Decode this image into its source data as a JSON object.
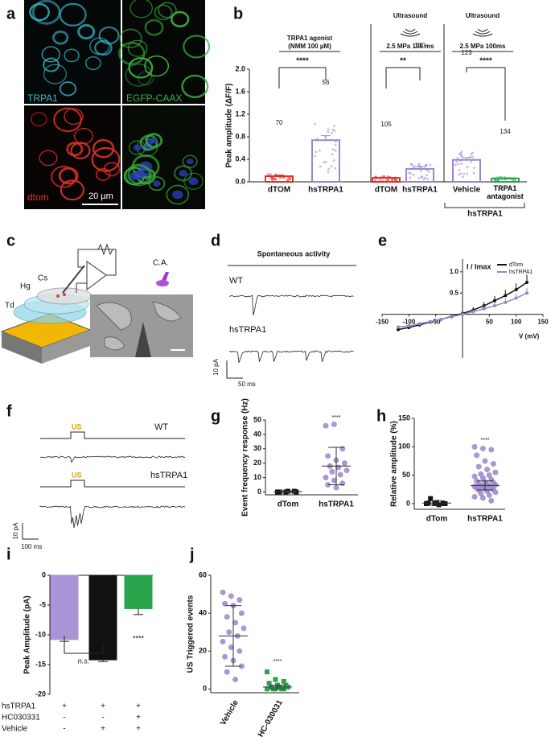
{
  "panel_letters": [
    "a",
    "b",
    "c",
    "d",
    "e",
    "f",
    "g",
    "h",
    "i",
    "j"
  ],
  "panel_a": {
    "labels": [
      "TRPA1",
      "EGFP-CAAX",
      "dtom"
    ],
    "scale_bar": "20 µm"
  },
  "panel_c": {
    "labels": [
      "Td",
      "Hg",
      "Cs",
      "C.A."
    ]
  },
  "panel_d": {
    "title": "Spontaneous activity",
    "traces": [
      "WT",
      "hsTRPA1"
    ],
    "scale_y": "10 pA",
    "scale_x": "50 ms"
  },
  "panel_f": {
    "stimulus": "US",
    "traces": [
      "WT",
      "hsTRPA1"
    ],
    "scale_y": "10 pA",
    "scale_x": "100 ms"
  },
  "table_i": {
    "rows": [
      [
        "hsTRPA1",
        "+",
        "+",
        "+"
      ],
      [
        "HC030331",
        "-",
        "-",
        "+"
      ],
      [
        "Vehicle",
        "-",
        "+",
        "+"
      ]
    ]
  },
  "chart_data": [
    {
      "type": "bar",
      "ylabel": "Peak amplitude (ΔF/F)",
      "categories": [
        "dTOM",
        "hsTRPA1",
        "dTOM",
        "hsTRPA1",
        "Vehicle",
        "TRPA1 antagonist"
      ],
      "values": [
        0.1,
        0.74,
        0.07,
        0.23,
        0.39,
        0.06
      ],
      "errors": [
        0.02,
        0.08,
        0.01,
        0.04,
        0.04,
        0.01
      ],
      "colors": [
        "#e0302a",
        "#9a86c9",
        "#e0302a",
        "#9a86c9",
        "#9a86c9",
        "#2aa44a"
      ],
      "n": [
        70,
        56,
        105,
        130,
        123,
        134
      ],
      "group_labels": [
        [
          "TRPA1 agonist",
          "(NMM 100 µM)"
        ],
        [
          "Ultrasound",
          "2.5 MPa 100 ms"
        ],
        [
          "Ultrasound",
          "2.5 MPa 100ms"
        ]
      ],
      "significance": [
        "****",
        "**",
        "****"
      ],
      "bracket_label": "hsTRPA1",
      "ylim": [
        0,
        2.0
      ],
      "yticks": [
        {
          "value": 0,
          "label": "0.0"
        },
        {
          "value": 0.4,
          "label": "0.4"
        },
        {
          "value": 0.8,
          "label": "0.8"
        },
        {
          "value": 1.2,
          "label": "1.2"
        },
        {
          "value": 1.6,
          "label": "1.6"
        },
        {
          "value": 2.0,
          "label": "2.0"
        }
      ]
    },
    {
      "type": "line",
      "ylabel": "I / Imax",
      "xlabel": "V (mV)",
      "x": [
        -120,
        -100,
        -80,
        -60,
        -40,
        -20,
        0,
        20,
        40,
        60,
        80,
        100,
        120
      ],
      "series": [
        {
          "name": "dTom",
          "color": "#111111",
          "values": [
            -0.36,
            -0.31,
            -0.25,
            -0.18,
            -0.12,
            -0.05,
            0.02,
            0.1,
            0.2,
            0.32,
            0.44,
            0.58,
            0.75
          ],
          "errors": [
            0.03,
            0.04,
            0.04,
            0.05,
            0.05,
            0.05,
            0.06,
            0.07,
            0.09,
            0.11,
            0.13,
            0.15,
            0.18
          ]
        },
        {
          "name": "hsTRPA1",
          "color": "#9a86c9",
          "values": [
            -0.3,
            -0.27,
            -0.22,
            -0.17,
            -0.12,
            -0.06,
            0,
            0.06,
            0.13,
            0.2,
            0.28,
            0.38,
            0.5
          ],
          "errors": [
            0.03,
            0.03,
            0.04,
            0.04,
            0.05,
            0.05,
            0.05,
            0.06,
            0.07,
            0.08,
            0.09,
            0.1,
            0.12
          ]
        }
      ],
      "xlim": [
        -150,
        150
      ],
      "xticks": [
        -150,
        -100,
        -50,
        50,
        100,
        150
      ],
      "ylim": [
        -0.5,
        1.3
      ],
      "yticks": [
        0.5,
        {
          "value": 1,
          "label": "1.0"
        }
      ],
      "legend": "upper right"
    },
    {
      "type": "strip",
      "ylabel": "Event frequency response (Hz)",
      "categories": [
        "dTom",
        "hsTRPA1"
      ],
      "points": [
        [
          0,
          0,
          0.5,
          0,
          0.5,
          0
        ],
        [
          46,
          47,
          30,
          25,
          22,
          20,
          18,
          17,
          15,
          14,
          12,
          10,
          8,
          6,
          5,
          3
        ]
      ],
      "values": [
        0.2,
        18
      ],
      "errors": [
        0.5,
        13
      ],
      "colors": [
        "#111111",
        "#9a86c9"
      ],
      "markers": [
        "square",
        "circle"
      ],
      "significance": "****",
      "ylim": [
        -2,
        50
      ],
      "yticks": [
        0,
        10,
        20,
        30,
        40,
        50
      ]
    },
    {
      "type": "strip",
      "ylabel": "Relative amplitude (%)",
      "categories": [
        "dTom",
        "hsTRPA1"
      ],
      "points": [
        [
          0,
          0,
          0,
          1,
          2,
          0,
          9,
          -2
        ],
        [
          100,
          97,
          95,
          85,
          75,
          70,
          65,
          60,
          55,
          52,
          50,
          48,
          45,
          42,
          40,
          38,
          37,
          35,
          34,
          33,
          32,
          31,
          30,
          29,
          28,
          27,
          26,
          25,
          24,
          22,
          20,
          18,
          15,
          12,
          10,
          5
        ]
      ],
      "values": [
        1,
        32
      ],
      "errors": [
        4,
        8
      ],
      "colors": [
        "#111111",
        "#9a86c9"
      ],
      "markers": [
        "square",
        "circle"
      ],
      "significance": "****",
      "ylim": [
        -10,
        150
      ],
      "yticks": [
        0,
        50,
        100,
        150
      ]
    },
    {
      "type": "bar",
      "ylabel": "Peak Amplitude (pA)",
      "categories": [
        null,
        null,
        null
      ],
      "values": [
        -10.8,
        -14.2,
        -5.6
      ],
      "errors": [
        0.3,
        0.3,
        1.0
      ],
      "colors": [
        "#a895d6",
        "#111111",
        "#2aa44a"
      ],
      "significance": [
        "n.s.",
        "****"
      ],
      "ylim": [
        -20,
        0
      ],
      "yticks": [
        0,
        -5,
        -10,
        -15,
        -20
      ]
    },
    {
      "type": "strip",
      "ylabel": "US Triggered events",
      "categories": [
        "Vehicle",
        "HC-030031"
      ],
      "points": [
        [
          51,
          49,
          47,
          45,
          44,
          40,
          38,
          35,
          32,
          30,
          28,
          25,
          22,
          20,
          17,
          15,
          12,
          9,
          5
        ],
        [
          9,
          5,
          4,
          3,
          2,
          2,
          1,
          1,
          1,
          0,
          0,
          0,
          0,
          0
        ]
      ],
      "values": [
        28,
        1
      ],
      "errors": [
        16,
        1
      ],
      "colors": [
        "#9a86c9",
        "#2aa44a"
      ],
      "markers": [
        "circle",
        "square"
      ],
      "significance": "****",
      "ylim": [
        -2,
        60
      ],
      "yticks": [
        0,
        20,
        40,
        60
      ]
    }
  ]
}
